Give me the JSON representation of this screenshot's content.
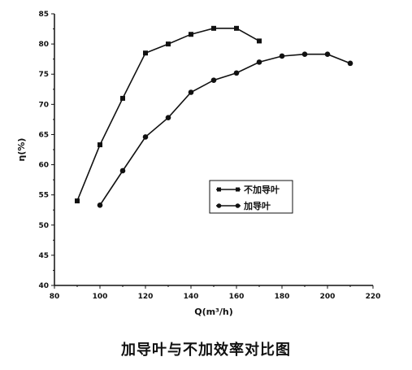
{
  "caption": "加导叶与不加效率对比图",
  "chart_data": {
    "type": "line",
    "title": "",
    "xlabel": "Q(m³/h)",
    "ylabel": "η(%)",
    "xlim": [
      80,
      220
    ],
    "ylim": [
      40,
      85
    ],
    "x_ticks": [
      80,
      100,
      120,
      140,
      160,
      180,
      200,
      220
    ],
    "x_tick_labels": [
      "80",
      "100",
      "120",
      "140",
      "160",
      "180",
      "200",
      "220"
    ],
    "y_ticks": [
      40,
      45,
      50,
      55,
      60,
      65,
      70,
      75,
      80,
      85
    ],
    "y_tick_labels": [
      "40",
      "45",
      "50",
      "55",
      "60",
      "65",
      "70",
      "75",
      "80",
      "85"
    ],
    "grid": false,
    "legend_position": "center-right",
    "series": [
      {
        "name": "不加导叶",
        "marker": "square",
        "x": [
          90,
          100,
          110,
          120,
          130,
          140,
          150,
          160,
          170
        ],
        "y": [
          54.0,
          63.3,
          71.0,
          78.5,
          80.0,
          81.6,
          82.6,
          82.6,
          80.5
        ]
      },
      {
        "name": "加导叶",
        "marker": "circle",
        "x": [
          100,
          110,
          120,
          130,
          140,
          150,
          160,
          170,
          180,
          190,
          200,
          210
        ],
        "y": [
          53.3,
          59.0,
          64.6,
          67.8,
          72.0,
          74.0,
          75.2,
          77.0,
          78.0,
          78.3,
          78.3,
          76.8
        ]
      }
    ]
  }
}
